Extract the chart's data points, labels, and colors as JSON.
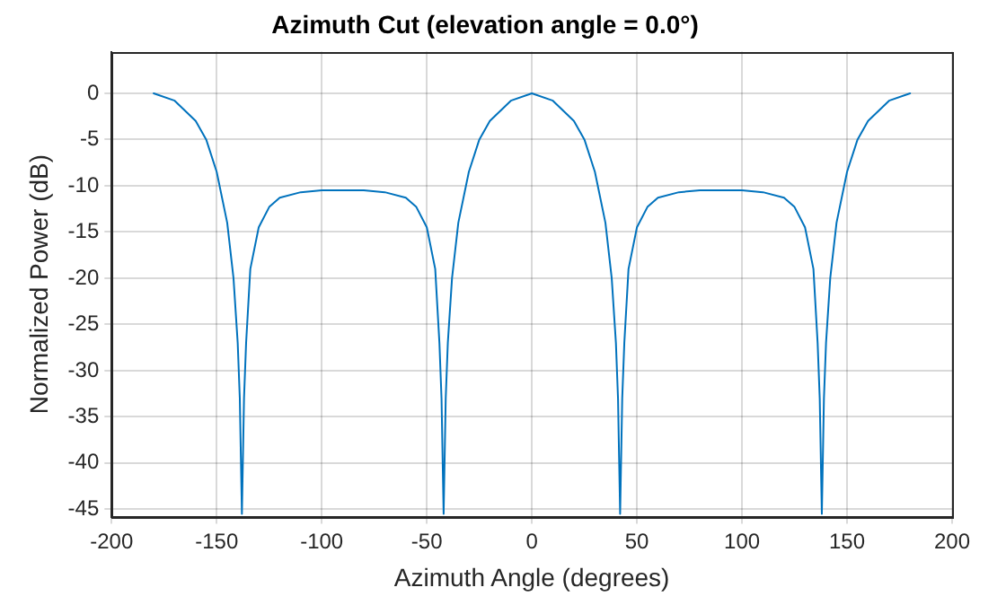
{
  "chart_data": {
    "type": "line",
    "title": "Azimuth Cut (elevation angle = 0.0°)",
    "xlabel": "Azimuth Angle (degrees)",
    "ylabel": "Normalized Power (dB)",
    "xlim": [
      -200,
      200
    ],
    "xticks": [
      -200,
      -150,
      -100,
      -50,
      0,
      50,
      100,
      150,
      200
    ],
    "ylim": [
      -45.8,
      4.5
    ],
    "yticks": [
      -45,
      -40,
      -35,
      -30,
      -25,
      -20,
      -15,
      -10,
      -5,
      0
    ],
    "grid": true,
    "legend": false,
    "marker": "none",
    "line_style": "solid",
    "series": [
      {
        "color": "#0072bd",
        "x": [
          -180,
          -170,
          -160,
          -155,
          -150,
          -145,
          -142,
          -140,
          -139,
          -138,
          -137,
          -136,
          -134,
          -130,
          -125,
          -120,
          -110,
          -100,
          -90,
          -80,
          -70,
          -60,
          -55,
          -50,
          -46,
          -44,
          -43,
          -42,
          -41,
          -40,
          -38,
          -35,
          -30,
          -25,
          -20,
          -10,
          0,
          10,
          20,
          25,
          30,
          35,
          38,
          40,
          41,
          42,
          43,
          44,
          46,
          50,
          55,
          60,
          70,
          80,
          90,
          100,
          110,
          120,
          125,
          130,
          134,
          136,
          137,
          138,
          139,
          140,
          142,
          145,
          150,
          155,
          160,
          170,
          180
        ],
        "values": [
          0,
          -0.8,
          -3,
          -5,
          -8.5,
          -14,
          -20,
          -27,
          -33,
          -45.5,
          -33,
          -27,
          -19,
          -14.5,
          -12.3,
          -11.3,
          -10.7,
          -10.5,
          -10.5,
          -10.5,
          -10.7,
          -11.3,
          -12.3,
          -14.5,
          -19,
          -27,
          -33,
          -45.5,
          -33,
          -27,
          -20,
          -14,
          -8.5,
          -5,
          -3,
          -0.8,
          0,
          -0.8,
          -3,
          -5,
          -8.5,
          -14,
          -20,
          -27,
          -33,
          -45.5,
          -33,
          -27,
          -19,
          -14.5,
          -12.3,
          -11.3,
          -10.7,
          -10.5,
          -10.5,
          -10.5,
          -10.7,
          -11.3,
          -12.3,
          -14.5,
          -19,
          -27,
          -33,
          -45.5,
          -33,
          -27,
          -20,
          -14,
          -8.5,
          -5,
          -3,
          -0.8,
          0
        ]
      }
    ]
  }
}
